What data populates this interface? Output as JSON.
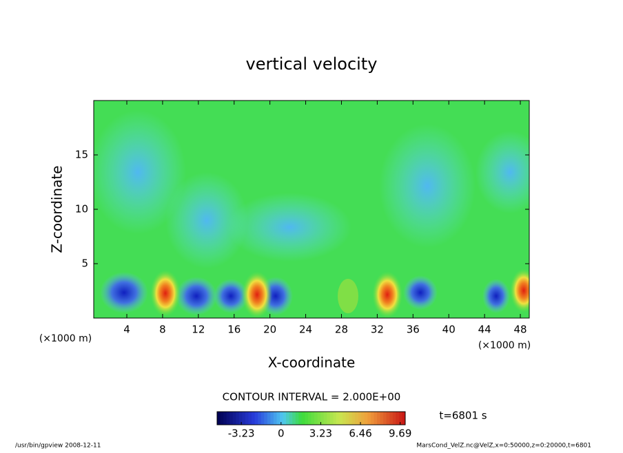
{
  "chart_data": {
    "type": "contour",
    "title": "vertical velocity",
    "xlabel": "X-coordinate",
    "ylabel": "Z-coordinate",
    "x_unit": "(×1000 m)",
    "xlim": [
      0.3,
      49
    ],
    "xticks": [
      4,
      8,
      12,
      16,
      20,
      24,
      28,
      32,
      36,
      40,
      44,
      48
    ],
    "ylim": [
      0,
      20
    ],
    "yticks": [
      5,
      10,
      15
    ],
    "contour_interval": "CONTOUR INTERVAL = 2.000E+00",
    "time_label": "t=6801 s",
    "colorbar": {
      "lim": [
        -5.2,
        10.1
      ],
      "ticks": [
        -3.23,
        0,
        3.23,
        6.46,
        9.69
      ]
    },
    "footer_left": "/usr/bin/gpview  2008-12-11",
    "footer_right": "MarsCond_VelZ.nc@VelZ,x=0:50000,z=0:20000,t=6801"
  }
}
